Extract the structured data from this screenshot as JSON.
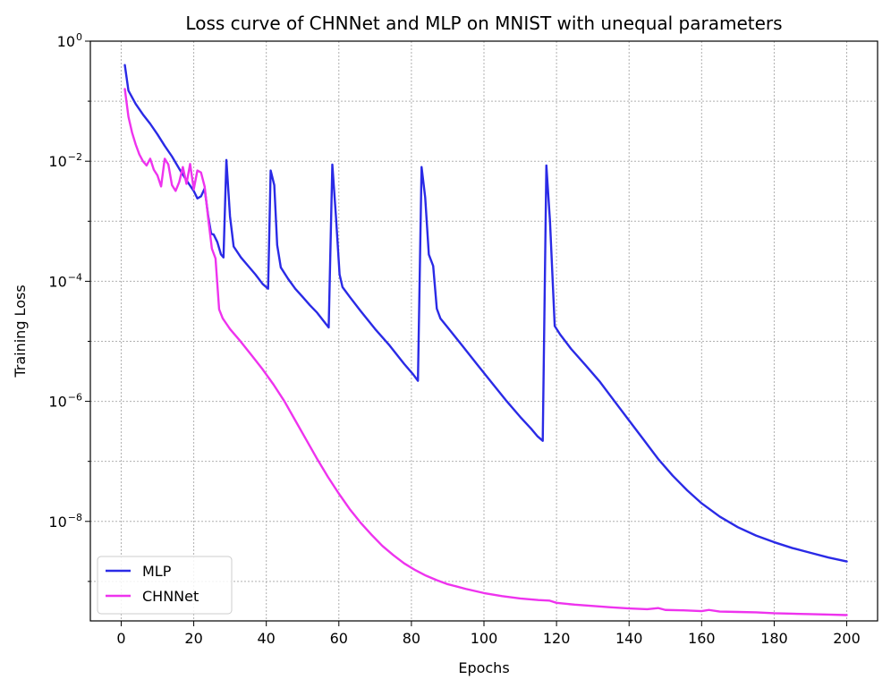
{
  "chart_data": {
    "type": "line",
    "title": "Loss curve of CHNNet and MLP on MNIST with unequal parameters",
    "xlabel": "Epochs",
    "ylabel": "Training Loss",
    "xlim": [
      -8.5,
      208.5
    ],
    "ylim": [
      2.2e-10,
      1.0
    ],
    "yscale": "log",
    "grid": true,
    "legend_position": "lower-left",
    "x_ticks": [
      0,
      20,
      40,
      60,
      80,
      100,
      120,
      140,
      160,
      180,
      200
    ],
    "y_ticks": [
      {
        "value": 1.0,
        "base": "10",
        "exp": "0"
      },
      {
        "value": 0.01,
        "base": "10",
        "exp": "−2"
      },
      {
        "value": 0.0001,
        "base": "10",
        "exp": "−4"
      },
      {
        "value": 1e-06,
        "base": "10",
        "exp": "−6"
      },
      {
        "value": 1e-08,
        "base": "10",
        "exp": "−8"
      }
    ],
    "y_minor_grid": [
      0.1,
      0.001,
      1e-05,
      1e-07,
      1e-09
    ],
    "series": [
      {
        "name": "MLP",
        "color": "#2a2ae6",
        "points": [
          [
            1,
            0.4
          ],
          [
            2,
            0.15
          ],
          [
            4,
            0.09
          ],
          [
            6,
            0.06
          ],
          [
            8,
            0.042
          ],
          [
            10,
            0.028
          ],
          [
            12,
            0.018
          ],
          [
            14,
            0.012
          ],
          [
            16,
            0.0075
          ],
          [
            18,
            0.0048
          ],
          [
            20,
            0.0032
          ],
          [
            21,
            0.0024
          ],
          [
            22,
            0.0026
          ],
          [
            23,
            0.0035
          ],
          [
            24,
            0.0012
          ],
          [
            24.8,
            0.00062
          ],
          [
            25.5,
            0.0006
          ],
          [
            26.5,
            0.00045
          ],
          [
            27.5,
            0.00028
          ],
          [
            28.2,
            0.00025
          ],
          [
            29,
            0.0105
          ],
          [
            30,
            0.0012
          ],
          [
            31,
            0.00038
          ],
          [
            33,
            0.00025
          ],
          [
            35,
            0.00018
          ],
          [
            37,
            0.00013
          ],
          [
            39,
            9e-05
          ],
          [
            40.5,
            7.5e-05
          ],
          [
            41.2,
            0.007
          ],
          [
            42.2,
            0.004
          ],
          [
            43,
            0.0004
          ],
          [
            44,
            0.00017
          ],
          [
            46,
            0.00011
          ],
          [
            48,
            7.5e-05
          ],
          [
            50,
            5.5e-05
          ],
          [
            52,
            4e-05
          ],
          [
            54,
            3e-05
          ],
          [
            56,
            2.1e-05
          ],
          [
            57.2,
            1.7e-05
          ],
          [
            58.2,
            0.0088
          ],
          [
            59.2,
            0.0012
          ],
          [
            60.2,
            0.00013
          ],
          [
            61,
            8e-05
          ],
          [
            63,
            5.5e-05
          ],
          [
            66,
            3.2e-05
          ],
          [
            70,
            1.6e-05
          ],
          [
            74,
            8.5e-06
          ],
          [
            78,
            4.2e-06
          ],
          [
            80.5,
            2.8e-06
          ],
          [
            81.8,
            2.2e-06
          ],
          [
            82.8,
            0.008
          ],
          [
            83.8,
            0.0025
          ],
          [
            84.8,
            0.00028
          ],
          [
            86,
            0.00018
          ],
          [
            87,
            3.5e-05
          ],
          [
            88,
            2.4e-05
          ],
          [
            90,
            1.7e-05
          ],
          [
            94,
            8.5e-06
          ],
          [
            98,
            4.2e-06
          ],
          [
            102,
            2.1e-06
          ],
          [
            106,
            1.05e-06
          ],
          [
            110,
            5.5e-07
          ],
          [
            113,
            3.5e-07
          ],
          [
            114.8,
            2.6e-07
          ],
          [
            116.2,
            2.2e-07
          ],
          [
            117.2,
            0.0085
          ],
          [
            118.2,
            0.001
          ],
          [
            119.5,
            1.8e-05
          ],
          [
            121,
            1.3e-05
          ],
          [
            124,
            7.5e-06
          ],
          [
            128,
            4e-06
          ],
          [
            132,
            2.1e-06
          ],
          [
            136,
            1e-06
          ],
          [
            140,
            4.8e-07
          ],
          [
            144,
            2.3e-07
          ],
          [
            148,
            1.1e-07
          ],
          [
            152,
            5.8e-08
          ],
          [
            156,
            3.3e-08
          ],
          [
            160,
            2e-08
          ],
          [
            165,
            1.2e-08
          ],
          [
            170,
            8e-09
          ],
          [
            175,
            5.8e-09
          ],
          [
            180,
            4.5e-09
          ],
          [
            185,
            3.6e-09
          ],
          [
            190,
            3e-09
          ],
          [
            195,
            2.5e-09
          ],
          [
            200,
            2.15e-09
          ]
        ]
      },
      {
        "name": "CHNNet",
        "color": "#ee33ee",
        "points": [
          [
            1,
            0.16
          ],
          [
            2,
            0.055
          ],
          [
            3,
            0.03
          ],
          [
            4,
            0.019
          ],
          [
            5,
            0.013
          ],
          [
            6,
            0.01
          ],
          [
            7,
            0.0085
          ],
          [
            8,
            0.011
          ],
          [
            9,
            0.0072
          ],
          [
            10,
            0.0058
          ],
          [
            11,
            0.0038
          ],
          [
            12,
            0.011
          ],
          [
            13,
            0.0088
          ],
          [
            14,
            0.004
          ],
          [
            15,
            0.0032
          ],
          [
            16,
            0.0045
          ],
          [
            17,
            0.008
          ],
          [
            18,
            0.0042
          ],
          [
            19,
            0.009
          ],
          [
            20,
            0.0034
          ],
          [
            21,
            0.007
          ],
          [
            22,
            0.0065
          ],
          [
            23,
            0.0038
          ],
          [
            24,
            0.0011
          ],
          [
            25,
            0.00035
          ],
          [
            26,
            0.00024
          ],
          [
            27,
            3.4e-05
          ],
          [
            28,
            2.4e-05
          ],
          [
            30,
            1.6e-05
          ],
          [
            33,
            9.8e-06
          ],
          [
            36,
            5.8e-06
          ],
          [
            39,
            3.4e-06
          ],
          [
            42,
            1.9e-06
          ],
          [
            45,
            1e-06
          ],
          [
            48,
            4.8e-07
          ],
          [
            51,
            2.3e-07
          ],
          [
            54,
            1.1e-07
          ],
          [
            57,
            5.5e-08
          ],
          [
            60,
            2.9e-08
          ],
          [
            63,
            1.6e-08
          ],
          [
            66,
            9.5e-09
          ],
          [
            69,
            6e-09
          ],
          [
            72,
            3.9e-09
          ],
          [
            75,
            2.75e-09
          ],
          [
            78,
            2e-09
          ],
          [
            81,
            1.55e-09
          ],
          [
            84,
            1.25e-09
          ],
          [
            87,
            1.05e-09
          ],
          [
            90,
            9e-10
          ],
          [
            95,
            7.5e-10
          ],
          [
            100,
            6.4e-10
          ],
          [
            105,
            5.7e-10
          ],
          [
            110,
            5.2e-10
          ],
          [
            115,
            4.9e-10
          ],
          [
            118,
            4.8e-10
          ],
          [
            120,
            4.4e-10
          ],
          [
            125,
            4.1e-10
          ],
          [
            130,
            3.9e-10
          ],
          [
            135,
            3.7e-10
          ],
          [
            140,
            3.55e-10
          ],
          [
            145,
            3.45e-10
          ],
          [
            148,
            3.6e-10
          ],
          [
            150,
            3.35e-10
          ],
          [
            155,
            3.3e-10
          ],
          [
            160,
            3.2e-10
          ],
          [
            162,
            3.35e-10
          ],
          [
            165,
            3.15e-10
          ],
          [
            170,
            3.1e-10
          ],
          [
            175,
            3.05e-10
          ],
          [
            180,
            2.95e-10
          ],
          [
            185,
            2.9e-10
          ],
          [
            190,
            2.85e-10
          ],
          [
            195,
            2.8e-10
          ],
          [
            200,
            2.75e-10
          ]
        ]
      }
    ]
  }
}
